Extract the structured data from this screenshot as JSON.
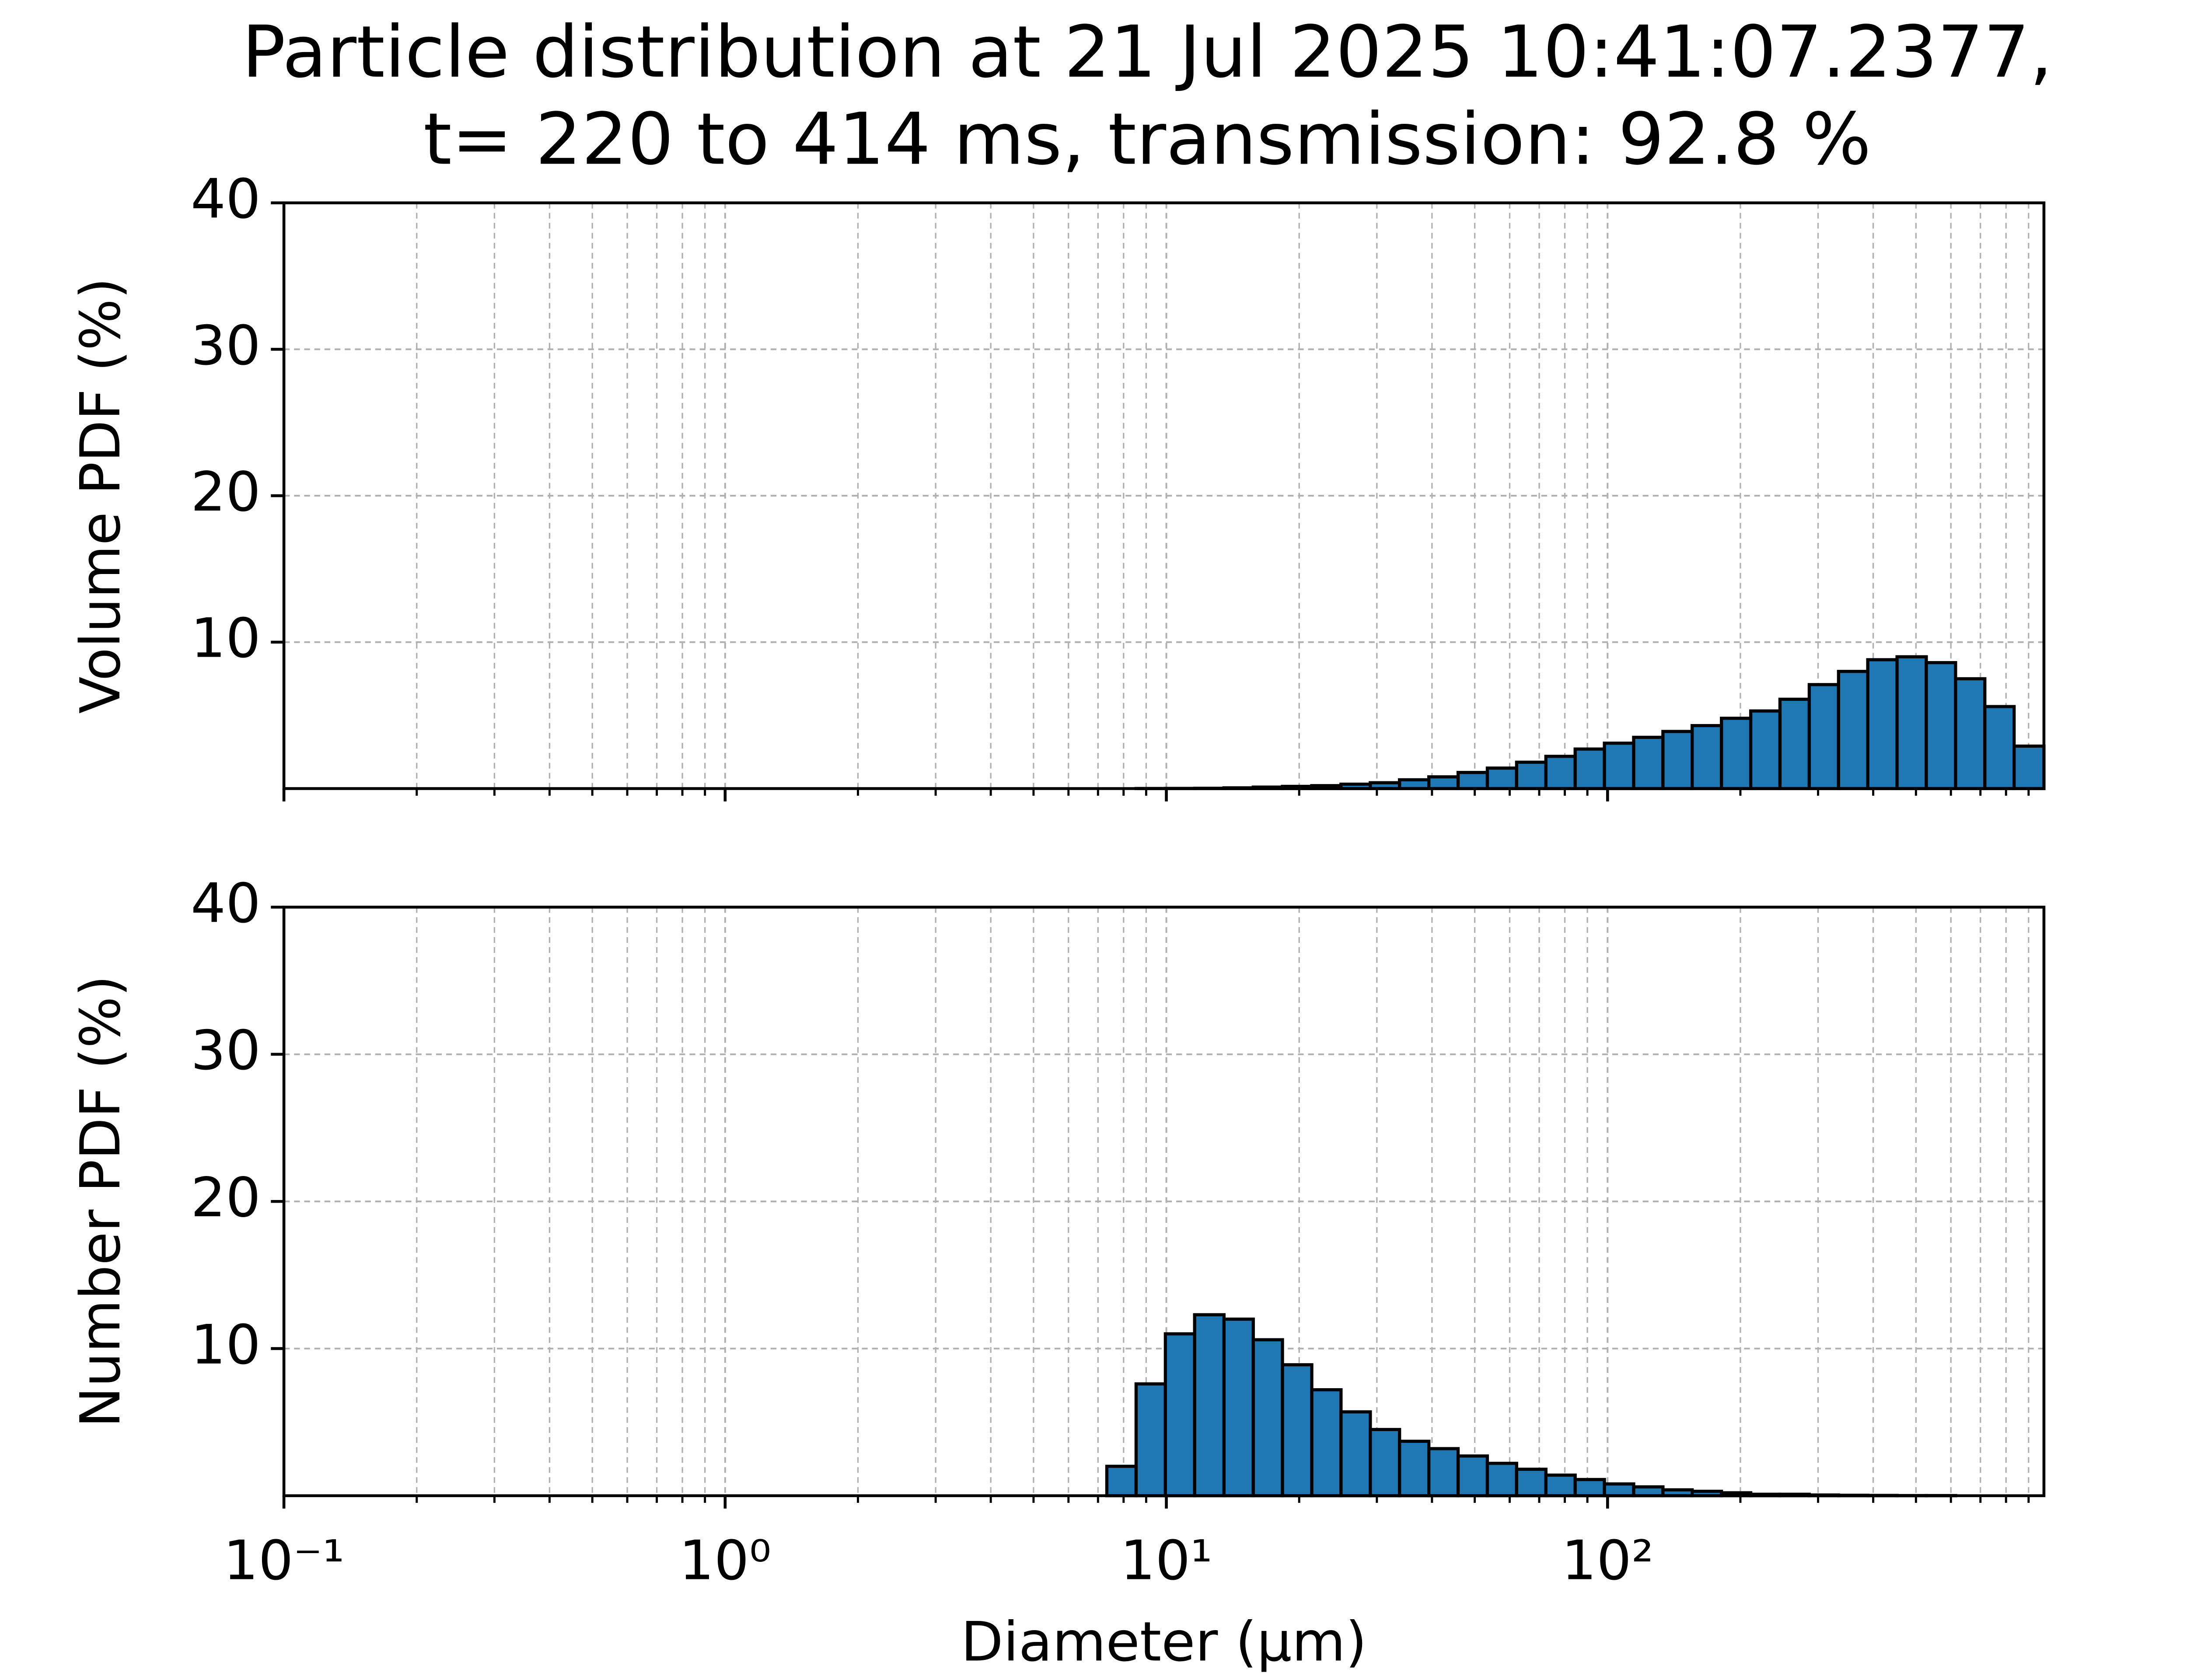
{
  "chart_data": [
    {
      "type": "histogram",
      "title": [
        "Particle distribution at 21 Jul 2025 10:41:07.2377,",
        "t= 220 to 414 ms, transmission: 92.8 %"
      ],
      "ylabel": "Volume PDF (%)",
      "bins": [
        7.33,
        8.54,
        9.95,
        11.59,
        13.51,
        15.74,
        18.33,
        21.36,
        24.88,
        28.99,
        33.77,
        39.35,
        45.84,
        53.4,
        62.21,
        72.48,
        84.44,
        98.37,
        114.6,
        133.5,
        155.5,
        181.2,
        211.1,
        245.9,
        286.5,
        333.8,
        388.8,
        453.0,
        527.7,
        614.8,
        716.2,
        834.4,
        975
      ],
      "values": [
        0,
        0.005,
        0.01,
        0.02,
        0.05,
        0.1,
        0.15,
        0.2,
        0.3,
        0.4,
        0.6,
        0.8,
        1.1,
        1.4,
        1.8,
        2.2,
        2.7,
        3.1,
        3.5,
        3.9,
        4.3,
        4.8,
        5.3,
        6.1,
        7.1,
        8.0,
        8.8,
        9.0,
        8.6,
        7.5,
        5.6,
        2.9
      ],
      "color": "#1f77b4",
      "xscale": "log",
      "xlim": [
        0.1,
        975
      ],
      "xticks": [
        0.1,
        1,
        10,
        100
      ],
      "xminorticks": [
        0.2,
        0.3,
        0.4,
        0.5,
        0.6,
        0.7,
        0.8,
        0.9,
        2,
        3,
        4,
        5,
        6,
        7,
        8,
        9,
        20,
        30,
        40,
        50,
        60,
        70,
        80,
        90,
        200,
        300,
        400,
        500,
        600,
        700,
        800,
        900
      ],
      "ylim": [
        0,
        40
      ],
      "yticks": [
        10,
        20,
        30,
        40
      ],
      "grid": true
    },
    {
      "type": "histogram",
      "ylabel": "Number PDF (%)",
      "xlabel": "Diameter (μm)",
      "bins": [
        7.33,
        8.54,
        9.95,
        11.59,
        13.51,
        15.74,
        18.33,
        21.36,
        24.88,
        28.99,
        33.77,
        39.35,
        45.84,
        53.4,
        62.21,
        72.48,
        84.44,
        98.37,
        114.6,
        133.5,
        155.5,
        181.2,
        211.1,
        245.9,
        286.5,
        333.8,
        388.8,
        453.0,
        527.7,
        614.8,
        716.2,
        834.4,
        975
      ],
      "values": [
        2.0,
        7.6,
        11.0,
        12.3,
        12.0,
        10.6,
        8.9,
        7.2,
        5.7,
        4.5,
        3.7,
        3.2,
        2.7,
        2.2,
        1.8,
        1.4,
        1.1,
        0.8,
        0.6,
        0.4,
        0.3,
        0.2,
        0.1,
        0.1,
        0.05,
        0.03,
        0.02,
        0.01,
        0.01,
        0,
        0,
        0
      ],
      "color": "#1f77b4",
      "xscale": "log",
      "xlim": [
        0.1,
        975
      ],
      "xticks": [
        {
          "value": 0.1,
          "label": "10⁻¹"
        },
        {
          "value": 1,
          "label": "10⁰"
        },
        {
          "value": 10,
          "label": "10¹"
        },
        {
          "value": 100,
          "label": "10²"
        }
      ],
      "xminorticks": [
        0.2,
        0.3,
        0.4,
        0.5,
        0.6,
        0.7,
        0.8,
        0.9,
        2,
        3,
        4,
        5,
        6,
        7,
        8,
        9,
        20,
        30,
        40,
        50,
        60,
        70,
        80,
        90,
        200,
        300,
        400,
        500,
        600,
        700,
        800,
        900
      ],
      "ylim": [
        0,
        40
      ],
      "yticks": [
        10,
        20,
        30,
        40
      ],
      "grid": true
    }
  ]
}
